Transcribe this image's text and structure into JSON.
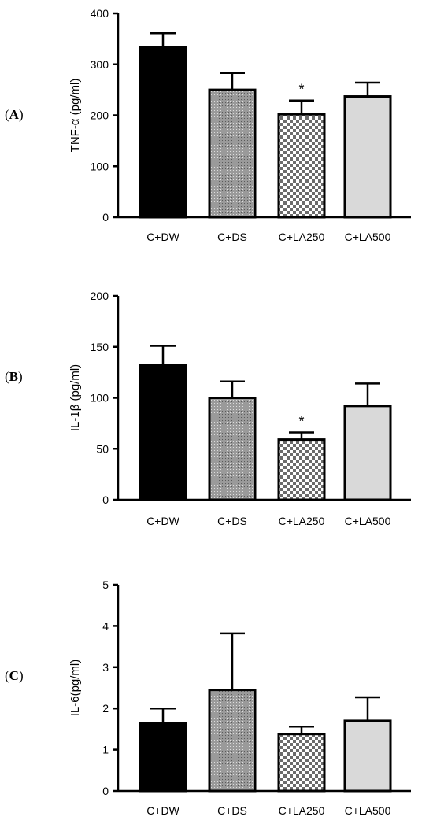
{
  "chart_data": [
    {
      "type": "bar",
      "panel_label": "A",
      "ylabel": "TNF-α (pg/ml)",
      "ylim": [
        0,
        400
      ],
      "yticks": [
        0,
        100,
        200,
        300,
        400
      ],
      "categories": [
        "C+DW",
        "C+DS",
        "C+LA250",
        "C+LA500"
      ],
      "values": [
        333,
        250,
        202,
        237
      ],
      "errors": [
        28,
        33,
        27,
        27
      ],
      "significance": [
        "",
        "",
        "*",
        ""
      ],
      "fills": [
        "solid-black",
        "gray-dots",
        "checker",
        "light-gray"
      ]
    },
    {
      "type": "bar",
      "panel_label": "B",
      "ylabel": "IL-1β (pg/ml)",
      "ylim": [
        0,
        200
      ],
      "yticks": [
        0,
        50,
        100,
        150,
        200
      ],
      "categories": [
        "C+DW",
        "C+DS",
        "C+LA250",
        "C+LA500"
      ],
      "values": [
        132,
        100,
        59,
        92
      ],
      "errors": [
        19,
        16,
        7,
        22
      ],
      "significance": [
        "",
        "",
        "*",
        ""
      ],
      "fills": [
        "solid-black",
        "gray-dots",
        "checker",
        "light-gray"
      ]
    },
    {
      "type": "bar",
      "panel_label": "C",
      "ylabel": "IL-6(pg/ml)",
      "ylim": [
        0,
        5
      ],
      "yticks": [
        0,
        1,
        2,
        3,
        4,
        5
      ],
      "categories": [
        "C+DW",
        "C+DS",
        "C+LA250",
        "C+LA500"
      ],
      "values": [
        1.65,
        2.45,
        1.38,
        1.7
      ],
      "errors": [
        0.35,
        1.37,
        0.18,
        0.57
      ],
      "significance": [
        "",
        "",
        "",
        ""
      ],
      "fills": [
        "solid-black",
        "gray-dots",
        "checker",
        "light-gray"
      ]
    }
  ]
}
